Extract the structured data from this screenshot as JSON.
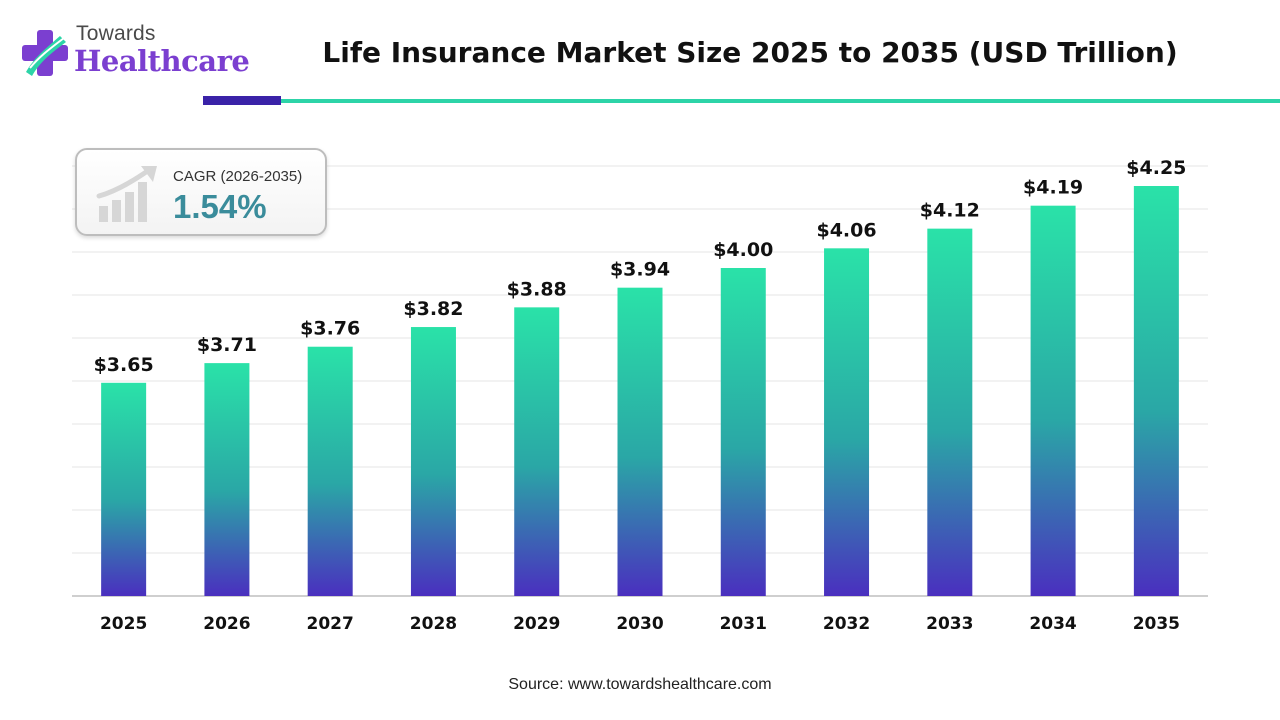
{
  "brand": {
    "top": "Towards",
    "bottom": "Healthcare"
  },
  "cagr": {
    "label": "CAGR (2026-2035)",
    "value": "1.54%"
  },
  "source": "Source: www.towardshealthcare.com",
  "colors": {
    "bar_top": "#2ae2a8",
    "bar_mid": "#2aa7a6",
    "bar_bottom": "#4a2fbf",
    "grid": "#e6e6e6",
    "axis": "#bfbfbf",
    "rule_dark": "#3a22a8",
    "rule_teal": "#2dd4a8"
  },
  "chart_data": {
    "type": "bar",
    "title": "Life Insurance Market Size 2025 to 2035 (USD Trillion)",
    "categories": [
      "2025",
      "2026",
      "2027",
      "2028",
      "2029",
      "2030",
      "2031",
      "2032",
      "2033",
      "2034",
      "2035"
    ],
    "values": [
      3.65,
      3.71,
      3.76,
      3.82,
      3.88,
      3.94,
      4.0,
      4.06,
      4.12,
      4.19,
      4.25
    ],
    "value_labels": [
      "$3.65",
      "$3.71",
      "$3.76",
      "$3.82",
      "$3.88",
      "$3.94",
      "$4.00",
      "$4.06",
      "$4.12",
      "$4.19",
      "$4.25"
    ],
    "xlabel": "",
    "ylabel": "",
    "ylim": [
      3.0,
      4.25
    ],
    "grid": true
  }
}
